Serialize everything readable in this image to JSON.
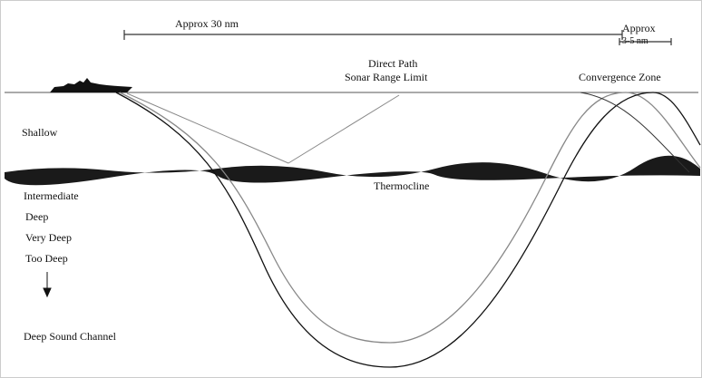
{
  "labels": {
    "range_main": "Approx 30 nm",
    "range_small_top": "Approx",
    "range_small_bottom": "3-5 nm",
    "direct_path_top": "Direct Path",
    "direct_path_bottom": "Sonar Range Limit",
    "convergence_zone": "Convergence Zone",
    "thermocline": "Thermocline"
  },
  "depths": [
    "Shallow",
    "Intermediate",
    "Deep",
    "Very Deep",
    "Too Deep",
    "Deep Sound Channel"
  ]
}
